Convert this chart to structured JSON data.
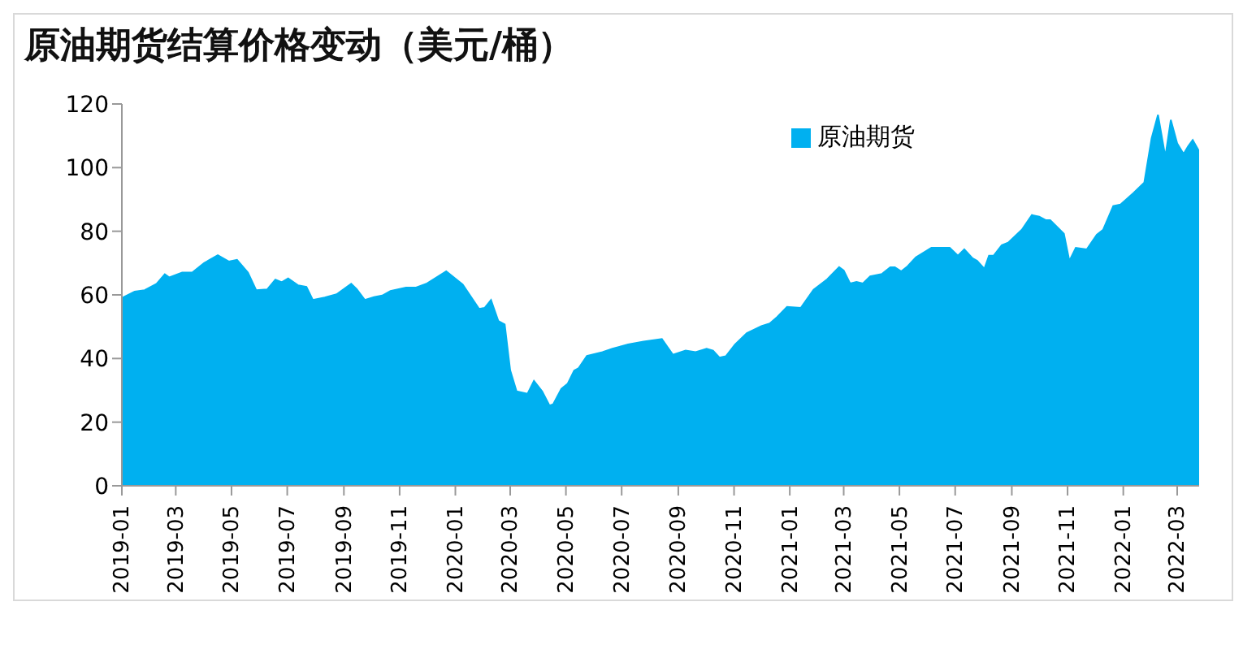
{
  "chart_data": {
    "type": "area",
    "title": "原油期货结算价格变动（美元/桶）",
    "x": [
      "2019-01-01",
      "2019-01-15",
      "2019-01-26",
      "2019-02-08",
      "2019-02-17",
      "2019-02-22",
      "2019-03-08",
      "2019-03-19",
      "2019-04-01",
      "2019-04-16",
      "2019-04-28",
      "2019-05-07",
      "2019-05-19",
      "2019-05-28",
      "2019-06-09",
      "2019-06-18",
      "2019-06-25",
      "2019-07-02",
      "2019-07-13",
      "2019-07-22",
      "2019-07-29",
      "2019-08-11",
      "2019-08-24",
      "2019-09-09",
      "2019-09-15",
      "2019-09-24",
      "2019-10-04",
      "2019-10-13",
      "2019-10-22",
      "2019-11-08",
      "2019-11-19",
      "2019-12-01",
      "2019-12-22",
      "2020-01-09",
      "2020-01-27",
      "2020-02-02",
      "2020-02-09",
      "2020-02-17",
      "2020-02-24",
      "2020-03-01",
      "2020-03-08",
      "2020-03-20",
      "2020-03-27",
      "2020-04-05",
      "2020-04-13",
      "2020-04-17",
      "2020-04-26",
      "2020-05-03",
      "2020-05-10",
      "2020-05-15",
      "2020-05-24",
      "2020-06-10",
      "2020-06-21",
      "2020-07-08",
      "2020-07-25",
      "2020-08-14",
      "2020-08-26",
      "2020-09-09",
      "2020-09-20",
      "2020-10-02",
      "2020-10-09",
      "2020-10-16",
      "2020-10-23",
      "2020-11-02",
      "2020-11-15",
      "2020-12-01",
      "2020-12-10",
      "2020-12-18",
      "2020-12-29",
      "2021-01-13",
      "2021-01-27",
      "2021-02-11",
      "2021-02-24",
      "2021-03-01",
      "2021-03-08",
      "2021-03-15",
      "2021-03-22",
      "2021-03-30",
      "2021-04-12",
      "2021-04-21",
      "2021-04-26",
      "2021-05-03",
      "2021-05-10",
      "2021-05-19",
      "2021-06-05",
      "2021-06-25",
      "2021-07-04",
      "2021-07-11",
      "2021-07-20",
      "2021-07-25",
      "2021-08-02",
      "2021-08-07",
      "2021-08-12",
      "2021-08-21",
      "2021-08-28",
      "2021-09-12",
      "2021-09-23",
      "2021-10-01",
      "2021-10-08",
      "2021-10-13",
      "2021-10-28",
      "2021-11-03",
      "2021-11-10",
      "2021-11-22",
      "2021-12-03",
      "2021-12-10",
      "2021-12-21",
      "2021-12-29",
      "2022-01-12",
      "2022-01-24",
      "2022-02-01",
      "2022-02-08",
      "2022-02-16",
      "2022-02-22",
      "2022-03-01",
      "2022-03-08",
      "2022-03-13",
      "2022-03-18",
      "2022-03-25"
    ],
    "series": [
      {
        "name": "原油期货",
        "color": "#00b0f0",
        "values": [
          59,
          61,
          61.5,
          63.5,
          66.5,
          65.5,
          67,
          67,
          70,
          72.5,
          70.5,
          71,
          67,
          61.5,
          61.7,
          64.8,
          64,
          65.2,
          63,
          62.5,
          58.4,
          59.2,
          60.2,
          63.5,
          61.8,
          58.4,
          59.3,
          59.8,
          61.2,
          62.3,
          62.3,
          63.6,
          67.4,
          63.3,
          55.6,
          55.9,
          58.4,
          51.8,
          50.7,
          36.3,
          29.7,
          28.9,
          33,
          29.7,
          25.2,
          25.6,
          30.5,
          32.1,
          36.2,
          37,
          40.8,
          42,
          43.1,
          44.4,
          45.3,
          46.1,
          41.2,
          42.5,
          42,
          43.1,
          42.5,
          40.3,
          40.7,
          44.4,
          48,
          50.2,
          51,
          53,
          56.2,
          55.9,
          61.6,
          64.9,
          68.7,
          67.7,
          63.6,
          64.1,
          63.6,
          65.8,
          66.6,
          68.7,
          68.7,
          67.4,
          69,
          71.8,
          74.8,
          74.8,
          72.3,
          74.3,
          71.5,
          70.7,
          68.2,
          72.3,
          72.3,
          75.6,
          76.4,
          80.5,
          85.1,
          84.6,
          83.5,
          83.5,
          79.2,
          70.7,
          74.8,
          74.3,
          78.9,
          80.5,
          87.9,
          88.4,
          92,
          95.3,
          109.2,
          116.6,
          103.4,
          115,
          107.6,
          104.3,
          106.7,
          108.7,
          105.1
        ]
      }
    ],
    "xlim": [
      "2019-01-01",
      "2022-03-25"
    ],
    "xticks": [
      "2019-01",
      "2019-03",
      "2019-05",
      "2019-07",
      "2019-09",
      "2019-11",
      "2020-01",
      "2020-03",
      "2020-05",
      "2020-07",
      "2020-09",
      "2020-11",
      "2021-01",
      "2021-03",
      "2021-05",
      "2021-07",
      "2021-09",
      "2021-11",
      "2022-01",
      "2022-03"
    ],
    "ylim": [
      0,
      120
    ],
    "yticks": [
      0,
      20,
      40,
      60,
      80,
      100,
      120
    ],
    "grid": false,
    "legend": "top right"
  }
}
